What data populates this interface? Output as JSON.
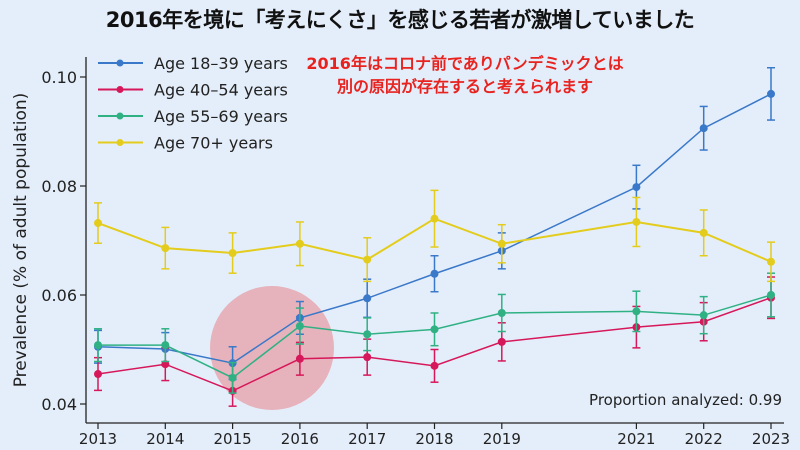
{
  "title": "2016年を境に「考えにくさ」を感じる若者が激増していました",
  "annotation": {
    "line1": "2016年はコロナ前でありパンデミックとは",
    "line2": "別の原因が存在すると考えられます",
    "color": "#e8231f",
    "highlight": "2015–2016"
  },
  "chart_data": {
    "type": "line",
    "ylabel": "Prevalence (% of adult population)",
    "xlabel": "",
    "x": [
      2013,
      2014,
      2015,
      2016,
      2017,
      2018,
      2019,
      2021,
      2022,
      2023
    ],
    "xtick_labels": [
      "2013",
      "2014",
      "2015",
      "2016",
      "2017",
      "2018",
      "2019",
      "2021",
      "2022",
      "2023"
    ],
    "ylim": [
      0.037,
      0.105
    ],
    "yticks": [
      0.04,
      0.06,
      0.08,
      0.1
    ],
    "ytick_labels": [
      "0.04",
      "0.06",
      "0.08",
      "0.10"
    ],
    "grid": false,
    "legend": "top-left",
    "footnote": "Proportion analyzed: 0.99",
    "series": [
      {
        "name": "Age 18–39 years",
        "color": "#3a78c9",
        "values": [
          0.0505,
          0.0501,
          0.0475,
          0.0558,
          0.0594,
          0.0639,
          0.0681,
          0.0798,
          0.0906,
          0.0969
        ],
        "err": [
          0.003,
          0.003,
          0.003,
          0.003,
          0.0035,
          0.0033,
          0.0033,
          0.004,
          0.004,
          0.0048
        ]
      },
      {
        "name": "Age 40–54 years",
        "color": "#d6185a",
        "values": [
          0.0455,
          0.0473,
          0.0424,
          0.0483,
          0.0486,
          0.047,
          0.0514,
          0.0541,
          0.0551,
          0.0595
        ],
        "err": [
          0.003,
          0.003,
          0.0028,
          0.003,
          0.0033,
          0.003,
          0.0035,
          0.0038,
          0.0035,
          0.0038
        ]
      },
      {
        "name": "Age 55–69 years",
        "color": "#2fb184",
        "values": [
          0.0508,
          0.0508,
          0.0448,
          0.0543,
          0.0528,
          0.0537,
          0.0567,
          0.057,
          0.0563,
          0.06
        ],
        "err": [
          0.003,
          0.003,
          0.0028,
          0.0033,
          0.003,
          0.003,
          0.0034,
          0.0037,
          0.0034,
          0.004
        ]
      },
      {
        "name": "Age 70+ years",
        "color": "#e3cc1c",
        "values": [
          0.0732,
          0.0686,
          0.0677,
          0.0694,
          0.0665,
          0.074,
          0.0694,
          0.0734,
          0.0714,
          0.0661
        ],
        "err": [
          0.0037,
          0.0038,
          0.0037,
          0.004,
          0.004,
          0.0052,
          0.0035,
          0.0045,
          0.0042,
          0.0036
        ]
      }
    ]
  }
}
